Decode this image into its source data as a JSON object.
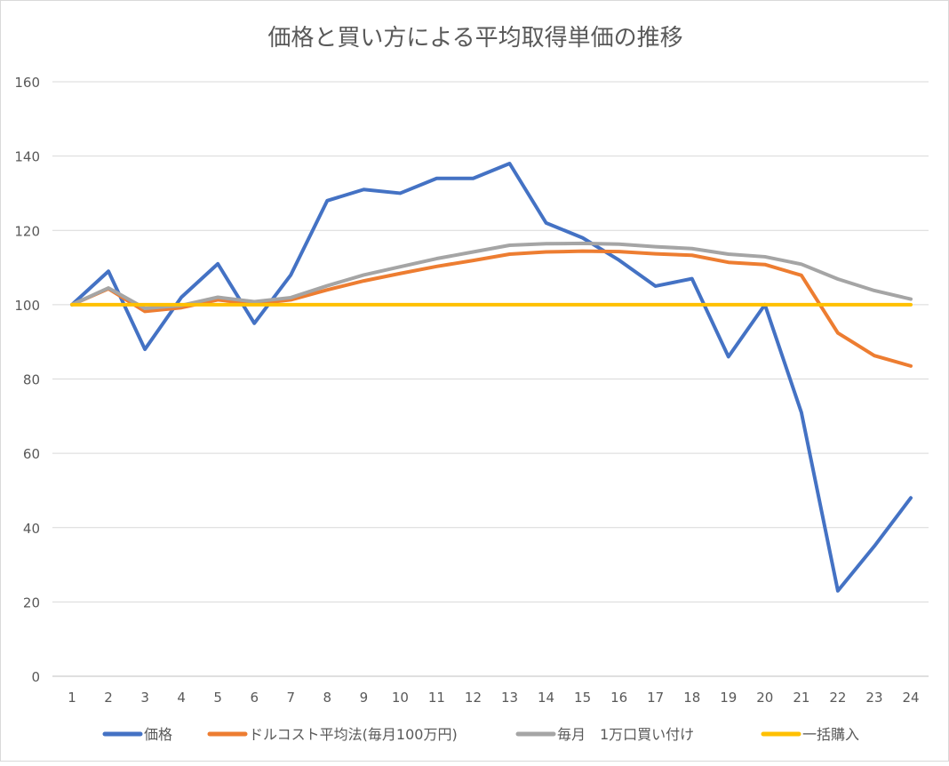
{
  "chart_data": {
    "type": "line",
    "title": "価格と買い方による平均取得単価の推移",
    "xlabel": "",
    "ylabel": "",
    "x": [
      1,
      2,
      3,
      4,
      5,
      6,
      7,
      8,
      9,
      10,
      11,
      12,
      13,
      14,
      15,
      16,
      17,
      18,
      19,
      20,
      21,
      22,
      23,
      24
    ],
    "ylim": [
      0,
      160
    ],
    "yticks": [
      0,
      20,
      40,
      60,
      80,
      100,
      120,
      140,
      160
    ],
    "grid": true,
    "legend_position": "bottom",
    "series": [
      {
        "name": "価格",
        "color": "#4472C4",
        "values": [
          100,
          109,
          88,
          102,
          111,
          95,
          108,
          128,
          131,
          130,
          134,
          134,
          138,
          122,
          118,
          112,
          105,
          107,
          86,
          100,
          71,
          23,
          35,
          48
        ]
      },
      {
        "name": "ドルコスト平均法(毎月100万円)",
        "color": "#ED7D31",
        "values": [
          100,
          104.3,
          98.2,
          99.2,
          101.3,
          100.2,
          101.3,
          104.0,
          106.4,
          108.4,
          110.3,
          111.9,
          113.6,
          114.2,
          114.4,
          114.3,
          113.7,
          113.3,
          111.4,
          110.8,
          107.9,
          92.4,
          86.3,
          83.5
        ]
      },
      {
        "name": "毎月　1万口買い付け",
        "color": "#A5A5A5",
        "values": [
          100,
          104.5,
          99,
          99.8,
          102,
          100.8,
          101.9,
          105.1,
          108,
          110.2,
          112.4,
          114.2,
          116,
          116.4,
          116.5,
          116.3,
          115.6,
          115.1,
          113.6,
          112.9,
          110.9,
          106.9,
          103.8,
          101.5
        ]
      },
      {
        "name": "一括購入",
        "color": "#FFC000",
        "values": [
          100,
          100,
          100,
          100,
          100,
          100,
          100,
          100,
          100,
          100,
          100,
          100,
          100,
          100,
          100,
          100,
          100,
          100,
          100,
          100,
          100,
          100,
          100,
          100
        ]
      }
    ]
  }
}
